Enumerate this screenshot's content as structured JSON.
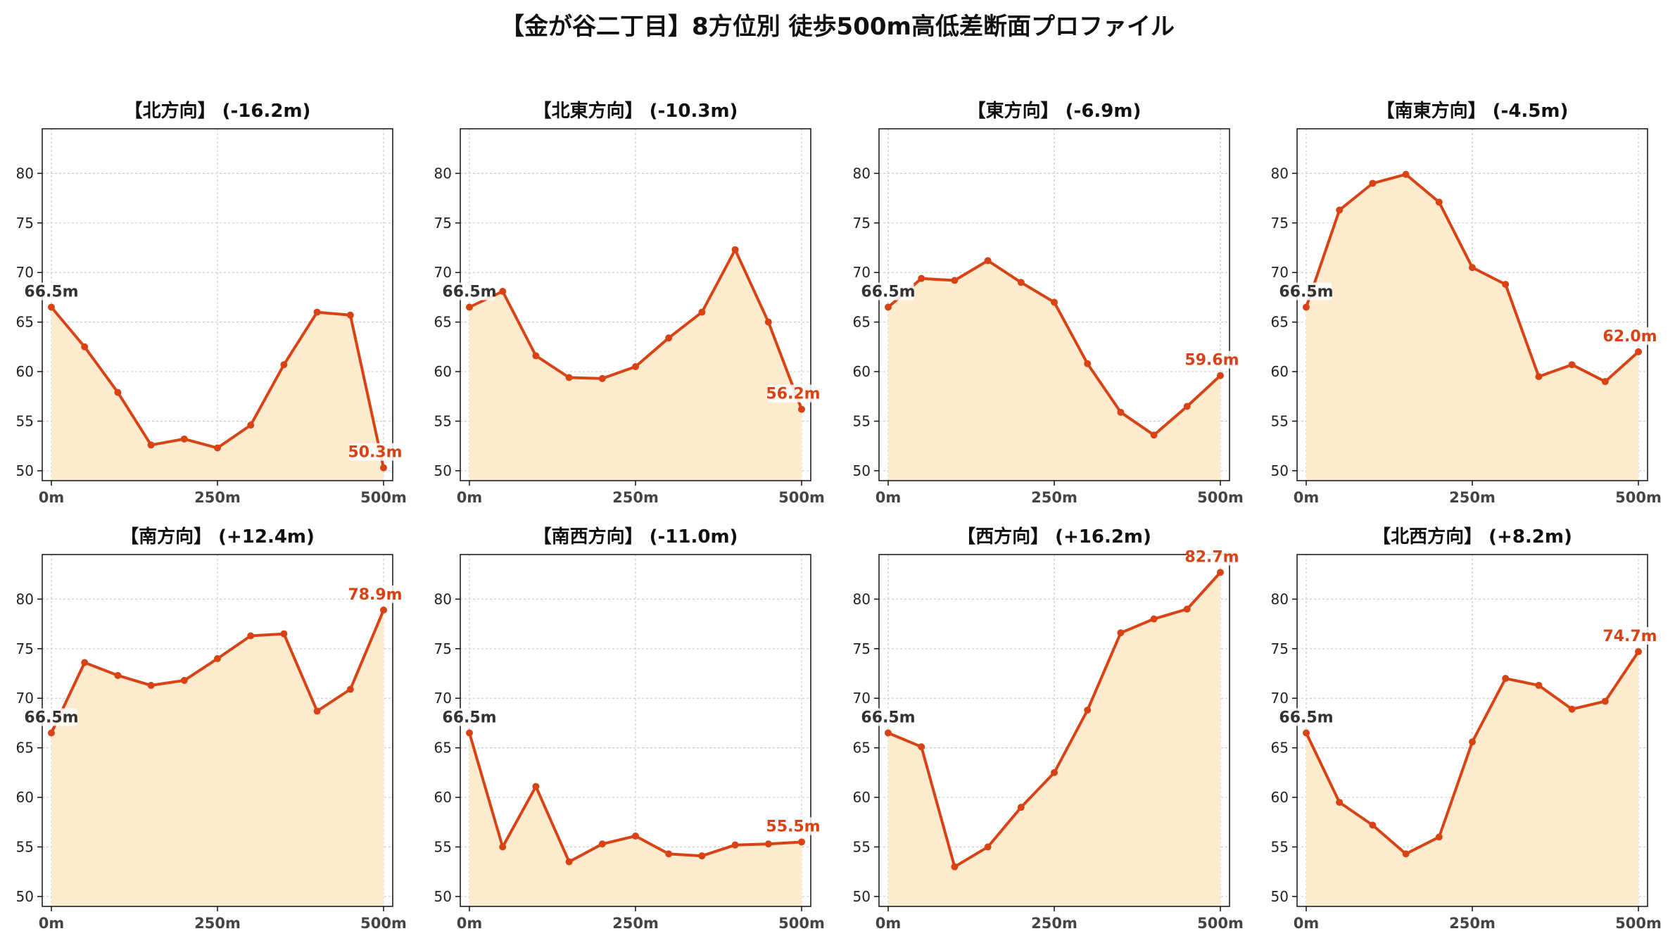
{
  "page": {
    "title": "【金が谷二丁目】8方位別 徒歩500m高低差断面プロファイル"
  },
  "style": {
    "line_color": "#d84315",
    "fill_color": "#fdebd0",
    "grid_color": "#cccccc",
    "start_label_color": "#333333"
  },
  "x_ticks": [
    {
      "value": 0,
      "label": "0m"
    },
    {
      "value": 250,
      "label": "250m"
    },
    {
      "value": 500,
      "label": "500m"
    }
  ],
  "y_ticks": [
    50,
    55,
    60,
    65,
    70,
    75,
    80
  ],
  "chart_data": [
    {
      "type": "area",
      "title": "【北方向】 (-16.2m)",
      "xlim": [
        0,
        500
      ],
      "ylim": [
        49,
        84.5
      ],
      "grid": true,
      "x": [
        0,
        50,
        100,
        150,
        200,
        250,
        300,
        350,
        400,
        450,
        500
      ],
      "y": [
        66.5,
        62.5,
        57.9,
        52.6,
        53.2,
        52.3,
        54.6,
        60.7,
        66.0,
        65.7,
        50.3
      ],
      "start_label": "66.5m",
      "end_label": "50.3m"
    },
    {
      "type": "area",
      "title": "【北東方向】 (-10.3m)",
      "xlim": [
        0,
        500
      ],
      "ylim": [
        49,
        84.5
      ],
      "grid": true,
      "x": [
        0,
        50,
        100,
        150,
        200,
        250,
        300,
        350,
        400,
        450,
        500
      ],
      "y": [
        66.5,
        68.1,
        61.6,
        59.4,
        59.3,
        60.5,
        63.4,
        66.0,
        72.3,
        65.0,
        56.2
      ],
      "start_label": "66.5m",
      "end_label": "56.2m"
    },
    {
      "type": "area",
      "title": "【東方向】 (-6.9m)",
      "xlim": [
        0,
        500
      ],
      "ylim": [
        49,
        84.5
      ],
      "grid": true,
      "x": [
        0,
        50,
        100,
        150,
        200,
        250,
        300,
        350,
        400,
        450,
        500
      ],
      "y": [
        66.5,
        69.4,
        69.2,
        71.2,
        69.0,
        67.0,
        60.8,
        55.9,
        53.6,
        56.5,
        59.6
      ],
      "start_label": "66.5m",
      "end_label": "59.6m"
    },
    {
      "type": "area",
      "title": "【南東方向】 (-4.5m)",
      "xlim": [
        0,
        500
      ],
      "ylim": [
        49,
        84.5
      ],
      "grid": true,
      "x": [
        0,
        50,
        100,
        150,
        200,
        250,
        300,
        350,
        400,
        450,
        500
      ],
      "y": [
        66.5,
        76.3,
        79.0,
        79.9,
        77.1,
        70.5,
        68.8,
        59.5,
        60.7,
        59.0,
        62.0
      ],
      "start_label": "66.5m",
      "end_label": "62.0m"
    },
    {
      "type": "area",
      "title": "【南方向】 (+12.4m)",
      "xlim": [
        0,
        500
      ],
      "ylim": [
        49,
        84.5
      ],
      "grid": true,
      "x": [
        0,
        50,
        100,
        150,
        200,
        250,
        300,
        350,
        400,
        450,
        500
      ],
      "y": [
        66.5,
        73.6,
        72.3,
        71.3,
        71.8,
        74.0,
        76.3,
        76.5,
        68.7,
        70.9,
        78.9
      ],
      "start_label": "66.5m",
      "end_label": "78.9m"
    },
    {
      "type": "area",
      "title": "【南西方向】 (-11.0m)",
      "xlim": [
        0,
        500
      ],
      "ylim": [
        49,
        84.5
      ],
      "grid": true,
      "x": [
        0,
        50,
        100,
        150,
        200,
        250,
        300,
        350,
        400,
        450,
        500
      ],
      "y": [
        66.5,
        55.0,
        61.1,
        53.5,
        55.3,
        56.1,
        54.3,
        54.1,
        55.2,
        55.3,
        55.5
      ],
      "start_label": "66.5m",
      "end_label": "55.5m"
    },
    {
      "type": "area",
      "title": "【西方向】 (+16.2m)",
      "xlim": [
        0,
        500
      ],
      "ylim": [
        49,
        84.5
      ],
      "grid": true,
      "x": [
        0,
        50,
        100,
        150,
        200,
        250,
        300,
        350,
        400,
        450,
        500
      ],
      "y": [
        66.5,
        65.1,
        53.0,
        55.0,
        59.0,
        62.5,
        68.8,
        76.6,
        78.0,
        79.0,
        82.7
      ],
      "start_label": "66.5m",
      "end_label": "82.7m"
    },
    {
      "type": "area",
      "title": "【北西方向】 (+8.2m)",
      "xlim": [
        0,
        500
      ],
      "ylim": [
        49,
        84.5
      ],
      "grid": true,
      "x": [
        0,
        50,
        100,
        150,
        200,
        250,
        300,
        350,
        400,
        450,
        500
      ],
      "y": [
        66.5,
        59.5,
        57.2,
        54.3,
        56.0,
        65.6,
        72.0,
        71.3,
        68.9,
        69.7,
        74.7
      ],
      "start_label": "66.5m",
      "end_label": "74.7m"
    }
  ]
}
